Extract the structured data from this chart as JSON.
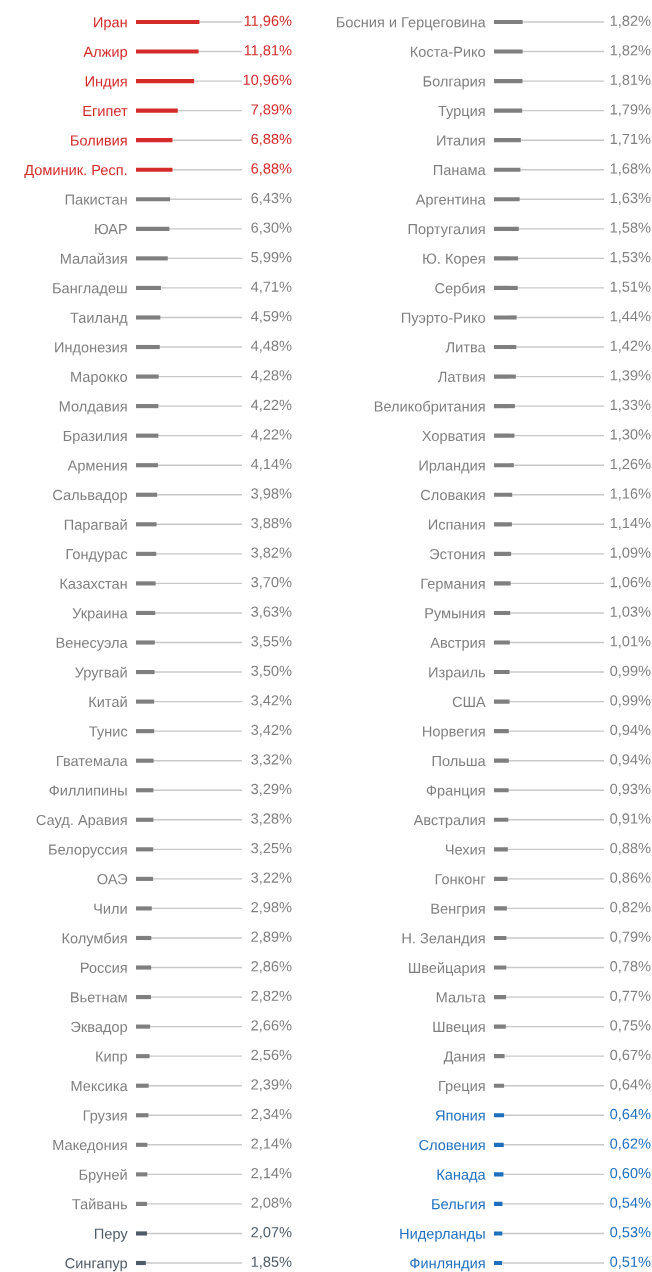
{
  "chart_data": [
    {
      "type": "bar",
      "orientation": "horizontal",
      "grid": "y",
      "data_labels": true,
      "xlim": [
        0,
        20
      ],
      "categories": [
        "Иран",
        "Алжир",
        "Индия",
        "Египет",
        "Боливия",
        "Доминик. Респ.",
        "Пакистан",
        "ЮАР",
        "Малайзия",
        "Бангладеш",
        "Таиланд",
        "Индонезия",
        "Марокко",
        "Молдавия",
        "Бразилия",
        "Армения",
        "Сальвадор",
        "Парагвай",
        "Гондурас",
        "Казахстан",
        "Украина",
        "Венесуэла",
        "Уругвай",
        "Китай",
        "Тунис",
        "Гватемала",
        "Филлипины",
        "Сауд. Аравия",
        "Белоруссия",
        "ОАЭ",
        "Чили",
        "Колумбия",
        "Россия",
        "Вьетнам",
        "Эквадор",
        "Кипр",
        "Мексика",
        "Грузия",
        "Македония",
        "Бруней",
        "Тайвань",
        "Перу",
        "Сингапур"
      ],
      "values": [
        11.96,
        11.81,
        10.96,
        7.89,
        6.88,
        6.88,
        6.43,
        6.3,
        5.99,
        4.71,
        4.59,
        4.48,
        4.28,
        4.22,
        4.22,
        4.14,
        3.98,
        3.88,
        3.82,
        3.7,
        3.63,
        3.55,
        3.5,
        3.42,
        3.42,
        3.32,
        3.29,
        3.28,
        3.25,
        3.22,
        2.98,
        2.89,
        2.86,
        2.82,
        2.66,
        2.56,
        2.39,
        2.34,
        2.14,
        2.14,
        2.08,
        2.07,
        1.85
      ],
      "value_labels": [
        "11,96%",
        "11,81%",
        "10,96%",
        "7,89%",
        "6,88%",
        "6,88%",
        "6,43%",
        "6,30%",
        "5,99%",
        "4,71%",
        "4,59%",
        "4,48%",
        "4,28%",
        "4,22%",
        "4,22%",
        "4,14%",
        "3,98%",
        "3,88%",
        "3,82%",
        "3,70%",
        "3,63%",
        "3,55%",
        "3,50%",
        "3,42%",
        "3,42%",
        "3,32%",
        "3,29%",
        "3,28%",
        "3,25%",
        "3,22%",
        "2,98%",
        "2,89%",
        "2,86%",
        "2,82%",
        "2,66%",
        "2,56%",
        "2,39%",
        "2,34%",
        "2,14%",
        "2,14%",
        "2,08%",
        "2,07%",
        "1,85%"
      ],
      "colors": [
        "#d42a2a",
        "#d42a2a",
        "#d42a2a",
        "#d42a2a",
        "#d42a2a",
        "#d42a2a",
        "#7f7f7f",
        "#7f7f7f",
        "#7f7f7f",
        "#7f7f7f",
        "#7f7f7f",
        "#7f7f7f",
        "#7f7f7f",
        "#7f7f7f",
        "#7f7f7f",
        "#7f7f7f",
        "#7f7f7f",
        "#7f7f7f",
        "#7f7f7f",
        "#7f7f7f",
        "#7f7f7f",
        "#7f7f7f",
        "#7f7f7f",
        "#7f7f7f",
        "#7f7f7f",
        "#7f7f7f",
        "#7f7f7f",
        "#7f7f7f",
        "#7f7f7f",
        "#7f7f7f",
        "#7f7f7f",
        "#7f7f7f",
        "#7f7f7f",
        "#7f7f7f",
        "#7f7f7f",
        "#7f7f7f",
        "#7f7f7f",
        "#7f7f7f",
        "#7f7f7f",
        "#7f7f7f",
        "#7f7f7f",
        "#4d5b68",
        "#4d5b68"
      ]
    },
    {
      "type": "bar",
      "orientation": "horizontal",
      "grid": "y",
      "data_labels": true,
      "xlim": [
        0,
        7
      ],
      "categories": [
        "Босния и Герцеговина",
        "Коста-Рико",
        "Болгария",
        "Турция",
        "Италия",
        "Панама",
        "Аргентина",
        "Португалия",
        "Ю. Корея",
        "Сербия",
        "Пуэрто-Рико",
        "Литва",
        "Латвия",
        "Великобритания",
        "Хорватия",
        "Ирландия",
        "Словакия",
        "Испания",
        "Эстония",
        "Германия",
        "Румыния",
        "Австрия",
        "Израиль",
        "США",
        "Норвегия",
        "Польша",
        "Франция",
        "Австралия",
        "Чехия",
        "Гонконг",
        "Венгрия",
        "Н. Зеландия",
        "Швейцария",
        "Мальта",
        "Швеция",
        "Дания",
        "Греция",
        "Япония",
        "Словения",
        "Канада",
        "Бельгия",
        "Нидерланды",
        "Финляндия"
      ],
      "values": [
        1.82,
        1.82,
        1.81,
        1.79,
        1.71,
        1.68,
        1.63,
        1.58,
        1.53,
        1.51,
        1.44,
        1.42,
        1.39,
        1.33,
        1.3,
        1.26,
        1.16,
        1.14,
        1.09,
        1.06,
        1.03,
        1.01,
        0.99,
        0.99,
        0.94,
        0.94,
        0.93,
        0.91,
        0.88,
        0.86,
        0.82,
        0.79,
        0.78,
        0.77,
        0.75,
        0.67,
        0.64,
        0.64,
        0.62,
        0.6,
        0.54,
        0.53,
        0.51
      ],
      "value_labels": [
        "1,82%",
        "1,82%",
        "1,81%",
        "1,79%",
        "1,71%",
        "1,68%",
        "1,63%",
        "1,58%",
        "1,53%",
        "1,51%",
        "1,44%",
        "1,42%",
        "1,39%",
        "1,33%",
        "1,30%",
        "1,26%",
        "1,16%",
        "1,14%",
        "1,09%",
        "1,06%",
        "1,03%",
        "1,01%",
        "0,99%",
        "0,99%",
        "0,94%",
        "0,94%",
        "0,93%",
        "0,91%",
        "0,88%",
        "0,86%",
        "0,82%",
        "0,79%",
        "0,78%",
        "0,77%",
        "0,75%",
        "0,67%",
        "0,64%",
        "0,64%",
        "0,62%",
        "0,60%",
        "0,54%",
        "0,53%",
        "0,51%"
      ],
      "colors": [
        "#7f7f7f",
        "#7f7f7f",
        "#7f7f7f",
        "#7f7f7f",
        "#7f7f7f",
        "#7f7f7f",
        "#7f7f7f",
        "#7f7f7f",
        "#7f7f7f",
        "#7f7f7f",
        "#7f7f7f",
        "#7f7f7f",
        "#7f7f7f",
        "#7f7f7f",
        "#7f7f7f",
        "#7f7f7f",
        "#7f7f7f",
        "#7f7f7f",
        "#7f7f7f",
        "#7f7f7f",
        "#7f7f7f",
        "#7f7f7f",
        "#7f7f7f",
        "#7f7f7f",
        "#7f7f7f",
        "#7f7f7f",
        "#7f7f7f",
        "#7f7f7f",
        "#7f7f7f",
        "#7f7f7f",
        "#7f7f7f",
        "#7f7f7f",
        "#7f7f7f",
        "#7f7f7f",
        "#7f7f7f",
        "#7f7f7f",
        "#7f7f7f",
        "#1f6fbf",
        "#1f6fbf",
        "#1f6fbf",
        "#1f6fbf",
        "#1f6fbf",
        "#1f6fbf"
      ]
    }
  ]
}
